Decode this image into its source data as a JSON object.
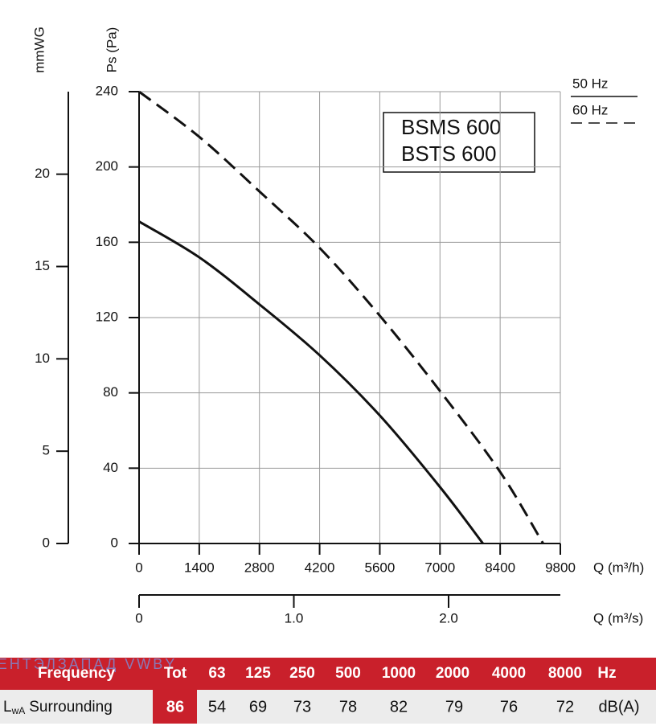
{
  "chart_data": {
    "type": "line",
    "y_label": "Ps (Pa)",
    "y2_label": "mmWG",
    "x_label": "Q (m³/h)",
    "x2_label": "Q (m³/s)",
    "annotations": [
      "BSMS 600",
      "BSTS 600"
    ],
    "xlim": [
      0,
      9800
    ],
    "xticks": [
      0,
      1400,
      2800,
      4200,
      5600,
      7000,
      8400,
      9800
    ],
    "ylim": [
      0,
      240
    ],
    "yticks": [
      0,
      40,
      80,
      120,
      160,
      200,
      240
    ],
    "y2lim": [
      0,
      24.47
    ],
    "y2ticks": [
      0,
      5,
      10,
      15,
      20
    ],
    "x2lim": [
      0,
      2.722
    ],
    "x2ticks": [
      0,
      {
        "value": 1,
        "label": "1.0"
      },
      {
        "value": 2,
        "label": "2.0"
      }
    ],
    "grid": true,
    "series": [
      {
        "name": "50 Hz",
        "color": "#111111",
        "style": "solid",
        "x": [
          0,
          1400,
          2800,
          4200,
          5600,
          7000,
          8000
        ],
        "values": [
          171,
          152,
          127,
          100,
          68,
          30,
          0
        ]
      },
      {
        "name": "60 Hz",
        "color": "#111111",
        "style": "dashed",
        "x": [
          0,
          1400,
          2800,
          4200,
          5600,
          7000,
          8400,
          9400
        ],
        "values": [
          240,
          216,
          187,
          157,
          121,
          81,
          38,
          0
        ]
      }
    ]
  },
  "watermark": "ВЕНТЭЛЗАПАД  VWBY",
  "table": {
    "header": [
      "Frequency",
      "Tot",
      "63",
      "125",
      "250",
      "500",
      "1000",
      "2000",
      "4000",
      "8000",
      "Hz"
    ],
    "row_label": {
      "main": "L",
      "sub": "wA",
      "rest": "Surrounding"
    },
    "row": [
      86,
      54,
      69,
      73,
      78,
      82,
      79,
      76,
      72
    ],
    "row_unit": "dB(A)"
  }
}
